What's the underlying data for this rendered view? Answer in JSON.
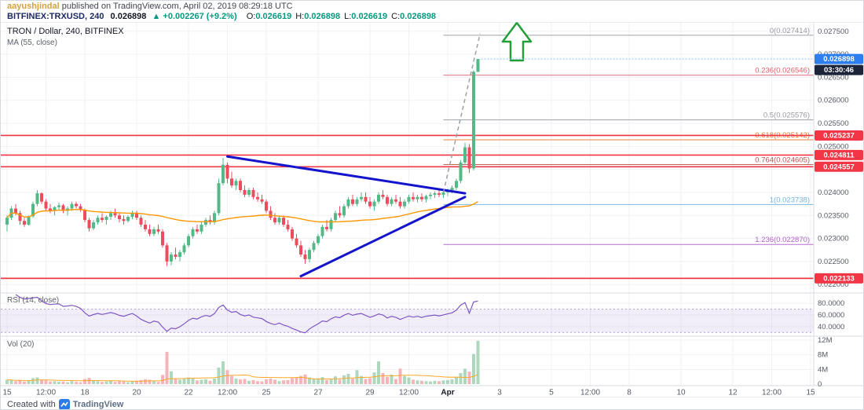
{
  "header": {
    "author": "aayushjindal",
    "published_text": "published on TradingView.com, April 02, 2019 08:29:18 UTC",
    "symbol": "BITFINEX:TRXUSD, 240",
    "last_price": "0.026898",
    "change_text": "▲ +0.002267 (+9.2%)",
    "ohlc": [
      {
        "label": "O:",
        "value": "0.026619"
      },
      {
        "label": "H:",
        "value": "0.026898"
      },
      {
        "label": "L:",
        "value": "0.026619"
      },
      {
        "label": "C:",
        "value": "0.026898"
      }
    ]
  },
  "legend": {
    "title": "TRON / Dollar, 240, BITFINEX",
    "ma": "MA (55, close)",
    "rsi": "RSI (14, close)",
    "vol": "Vol (20)"
  },
  "footer": {
    "created_with": "Created with",
    "brand": "TradingView"
  },
  "chart_data": {
    "type": "candlestick",
    "title": "TRON / Dollar, 240, BITFINEX",
    "symbol": "BITFINEX:TRXUSD",
    "interval": "240",
    "price_range": [
      0.02185,
      0.02765
    ],
    "rsi_range": [
      25,
      95
    ],
    "rsi_band": [
      30,
      70
    ],
    "vol_max": 12,
    "fib_start_i": 101,
    "indicators": {
      "ma_period": 55,
      "rsi_period": 14,
      "vol_ma_period": 20
    },
    "colors": {
      "up": "#53b987",
      "down": "#eb4d5c",
      "vol_up": "#aed8bd",
      "vol_down": "#f5b3ba",
      "ma": "#ff9800",
      "vol_ma": "#ffa726",
      "rsi": "#7e57c2",
      "rsi_band_edge": "#b39ddb",
      "triangle": "#1414cc",
      "dashed": "#9aa0a8",
      "arrow": "#22a038",
      "red_line": "#f23645",
      "tag_blue": "#2d7ff0",
      "tag_dark": "#1b2439"
    },
    "y_ticks": [
      "0.027500",
      "0.027000",
      "0.026500",
      "0.026000",
      "0.025500",
      "0.025000",
      "0.024500",
      "0.024000",
      "0.023500",
      "0.023000",
      "0.022500",
      "0.022000"
    ],
    "x_ticks": [
      {
        "label": "15",
        "i": 0
      },
      {
        "label": "12:00",
        "i": 9
      },
      {
        "label": "18",
        "i": 18
      },
      {
        "label": "20",
        "i": 30
      },
      {
        "label": "22",
        "i": 42
      },
      {
        "label": "12:00",
        "i": 51
      },
      {
        "label": "25",
        "i": 60
      },
      {
        "label": "27",
        "i": 72
      },
      {
        "label": "29",
        "i": 84
      },
      {
        "label": "12:00",
        "i": 93
      },
      {
        "label": "Apr",
        "i": 102,
        "bold": true
      },
      {
        "label": "3",
        "i": 114
      },
      {
        "label": "5",
        "i": 126
      },
      {
        "label": "12:00",
        "i": 135
      },
      {
        "label": "8",
        "i": 144
      },
      {
        "label": "10",
        "i": 156
      },
      {
        "label": "12",
        "i": 168
      },
      {
        "label": "12:00",
        "i": 177
      },
      {
        "label": "15",
        "i": 186
      }
    ],
    "rsi_ticks": [
      {
        "label": "80.0000",
        "v": 80
      },
      {
        "label": "60.0000",
        "v": 60
      },
      {
        "label": "40.0000",
        "v": 40
      }
    ],
    "vol_ticks": [
      {
        "label": "12M",
        "v": 12
      },
      {
        "label": "8M",
        "v": 8
      },
      {
        "label": "4M",
        "v": 4
      },
      {
        "label": "0",
        "v": 0
      }
    ],
    "fib_levels": [
      {
        "label": "0(0.027414)",
        "price": 0.027414,
        "color": "#9598a1"
      },
      {
        "label": "0.236(0.026546)",
        "price": 0.026546,
        "color": "#e05c6a"
      },
      {
        "label": "0.5(0.025576)",
        "price": 0.025576,
        "color": "#9598a1"
      },
      {
        "label": "0.618(0.025142)",
        "price": 0.025142,
        "color": "#e8742c"
      },
      {
        "label": "0.764(0.024605)",
        "price": 0.024605,
        "color": "#c05050"
      },
      {
        "label": "1(0.023738)",
        "price": 0.023738,
        "color": "#6fb3e0"
      },
      {
        "label": "1.236(0.022870)",
        "price": 0.02287,
        "color": "#b05ecb"
      }
    ],
    "red_lines": [
      {
        "price": 0.025237,
        "tag": "0.025237"
      },
      {
        "price": 0.024811,
        "tag": "0.024811"
      },
      {
        "price": 0.024557,
        "tag": "0.024557"
      },
      {
        "price": 0.022133,
        "tag": "0.022133"
      }
    ],
    "current_price": {
      "value": "0.026898",
      "price": 0.026898,
      "countdown": "03:30:46"
    },
    "triangle": {
      "lines": [
        {
          "i1": 51,
          "p1": 0.02478,
          "i2": 106,
          "p2": 0.02398
        },
        {
          "i1": 68,
          "p1": 0.02218,
          "i2": 106,
          "p2": 0.0239
        }
      ]
    },
    "projection_line": {
      "points": [
        {
          "i": 101,
          "p": 0.024
        },
        {
          "i": 109.5,
          "p": 0.02745
        }
      ]
    },
    "arrow": {
      "cx": 657,
      "top": 28,
      "head_y": 52,
      "bottom": 76,
      "half_head": 18,
      "half_shaft": 8
    },
    "candles": [
      [
        23300,
        23500,
        23150,
        23450,
        1.2
      ],
      [
        23450,
        23700,
        23400,
        23650,
        1.0
      ],
      [
        23650,
        23750,
        23500,
        23550,
        0.8
      ],
      [
        23550,
        23600,
        23300,
        23380,
        1.1
      ],
      [
        23380,
        23450,
        23250,
        23300,
        0.7
      ],
      [
        23300,
        23500,
        23280,
        23480,
        0.9
      ],
      [
        23480,
        23800,
        23450,
        23750,
        1.6
      ],
      [
        23750,
        24050,
        23700,
        23980,
        1.8
      ],
      [
        23980,
        24000,
        23750,
        23800,
        1.2
      ],
      [
        23800,
        23850,
        23600,
        23650,
        1.0
      ],
      [
        23650,
        23750,
        23550,
        23600,
        0.7
      ],
      [
        23600,
        23700,
        23500,
        23680,
        0.8
      ],
      [
        23680,
        23780,
        23600,
        23720,
        0.6
      ],
      [
        23720,
        23750,
        23550,
        23600,
        0.7
      ],
      [
        23600,
        23700,
        23500,
        23650,
        0.5
      ],
      [
        23650,
        23800,
        23600,
        23750,
        0.8
      ],
      [
        23750,
        23800,
        23650,
        23700,
        0.6
      ],
      [
        23700,
        23750,
        23580,
        23620,
        0.5
      ],
      [
        23620,
        23650,
        23350,
        23400,
        1.4
      ],
      [
        23400,
        23450,
        23150,
        23220,
        1.7
      ],
      [
        23220,
        23400,
        23180,
        23350,
        1.0
      ],
      [
        23350,
        23500,
        23300,
        23450,
        0.8
      ],
      [
        23450,
        23550,
        23350,
        23400,
        0.6
      ],
      [
        23400,
        23500,
        23300,
        23470,
        0.7
      ],
      [
        23470,
        23600,
        23400,
        23550,
        0.9
      ],
      [
        23550,
        23650,
        23450,
        23500,
        0.6
      ],
      [
        23500,
        23550,
        23350,
        23420,
        0.8
      ],
      [
        23420,
        23500,
        23300,
        23380,
        0.7
      ],
      [
        23380,
        23500,
        23350,
        23470,
        0.5
      ],
      [
        23470,
        23600,
        23420,
        23560,
        0.8
      ],
      [
        23560,
        23600,
        23400,
        23450,
        0.9
      ],
      [
        23450,
        23500,
        23250,
        23300,
        1.1
      ],
      [
        23300,
        23400,
        23150,
        23200,
        1.3
      ],
      [
        23200,
        23300,
        23050,
        23100,
        1.2
      ],
      [
        23100,
        23250,
        23050,
        23200,
        0.8
      ],
      [
        23200,
        23300,
        23100,
        23150,
        0.6
      ],
      [
        23150,
        23200,
        22800,
        22850,
        2.5
      ],
      [
        22850,
        22900,
        22400,
        22500,
        8.8
      ],
      [
        22500,
        22700,
        22420,
        22650,
        3.5
      ],
      [
        22650,
        22800,
        22550,
        22600,
        1.5
      ],
      [
        22600,
        22750,
        22500,
        22700,
        1.2
      ],
      [
        22700,
        22900,
        22650,
        22850,
        1.4
      ],
      [
        22850,
        23100,
        22800,
        23050,
        1.8
      ],
      [
        23050,
        23250,
        23000,
        23200,
        1.6
      ],
      [
        23200,
        23300,
        23100,
        23150,
        1.0
      ],
      [
        23150,
        23350,
        23100,
        23300,
        1.2
      ],
      [
        23300,
        23450,
        23250,
        23400,
        1.3
      ],
      [
        23400,
        23500,
        23300,
        23350,
        0.9
      ],
      [
        23350,
        23600,
        23300,
        23550,
        1.5
      ],
      [
        23550,
        24300,
        23500,
        24200,
        4.5
      ],
      [
        24200,
        24750,
        24150,
        24600,
        6.2
      ],
      [
        24600,
        24650,
        24200,
        24300,
        3.8
      ],
      [
        24300,
        24450,
        24100,
        24150,
        2.2
      ],
      [
        24150,
        24300,
        24050,
        24250,
        1.5
      ],
      [
        24250,
        24300,
        24000,
        24050,
        1.3
      ],
      [
        24050,
        24150,
        23900,
        23950,
        1.4
      ],
      [
        23950,
        24100,
        23900,
        24050,
        0.9
      ],
      [
        24050,
        24100,
        23850,
        23900,
        1.1
      ],
      [
        23900,
        24000,
        23800,
        23850,
        0.8
      ],
      [
        23850,
        23950,
        23750,
        23800,
        0.7
      ],
      [
        23800,
        23850,
        23550,
        23600,
        1.3
      ],
      [
        23600,
        23700,
        23400,
        23450,
        1.5
      ],
      [
        23450,
        23550,
        23300,
        23350,
        1.2
      ],
      [
        23350,
        23500,
        23300,
        23450,
        0.8
      ],
      [
        23450,
        23500,
        23250,
        23300,
        1.0
      ],
      [
        23300,
        23400,
        23150,
        23200,
        1.1
      ],
      [
        23200,
        23250,
        22950,
        23000,
        1.6
      ],
      [
        23000,
        23100,
        22800,
        22850,
        1.8
      ],
      [
        22850,
        22950,
        22600,
        22650,
        2.2
      ],
      [
        22650,
        22750,
        22450,
        22550,
        2.6
      ],
      [
        22550,
        22800,
        22480,
        22750,
        1.8
      ],
      [
        22750,
        22950,
        22700,
        22900,
        1.4
      ],
      [
        22900,
        23100,
        22850,
        23050,
        1.6
      ],
      [
        23050,
        23300,
        23000,
        23250,
        1.9
      ],
      [
        23250,
        23400,
        23150,
        23200,
        1.1
      ],
      [
        23200,
        23450,
        23150,
        23400,
        1.5
      ],
      [
        23400,
        23600,
        23350,
        23550,
        2.1
      ],
      [
        23550,
        23700,
        23450,
        23500,
        1.2
      ],
      [
        23500,
        23750,
        23450,
        23700,
        2.4
      ],
      [
        23700,
        23900,
        23650,
        23850,
        2.8
      ],
      [
        23850,
        23950,
        23700,
        23750,
        1.5
      ],
      [
        23750,
        23900,
        23700,
        23850,
        3.8
      ],
      [
        23850,
        24000,
        23800,
        23900,
        2.2
      ],
      [
        23900,
        24000,
        23750,
        23800,
        1.4
      ],
      [
        23800,
        23900,
        23650,
        23700,
        1.6
      ],
      [
        23700,
        23850,
        23600,
        23800,
        3.2
      ],
      [
        23800,
        24000,
        23750,
        23950,
        6.2
      ],
      [
        23950,
        24050,
        23850,
        23900,
        3.0
      ],
      [
        23900,
        23950,
        23700,
        23750,
        2.0
      ],
      [
        23750,
        23900,
        23700,
        23850,
        2.6
      ],
      [
        23850,
        23950,
        23750,
        23800,
        1.4
      ],
      [
        23800,
        23900,
        23650,
        23700,
        4.2
      ],
      [
        23700,
        23850,
        23650,
        23800,
        2.2
      ],
      [
        23800,
        23950,
        23750,
        23900,
        1.8
      ],
      [
        23900,
        24000,
        23800,
        23850,
        1.2
      ],
      [
        23850,
        23950,
        23780,
        23900,
        1.0
      ],
      [
        23900,
        23980,
        23800,
        23850,
        0.9
      ],
      [
        23850,
        23950,
        23780,
        23920,
        0.8
      ],
      [
        23920,
        24000,
        23850,
        23950,
        0.7
      ],
      [
        23950,
        24020,
        23880,
        23980,
        0.9
      ],
      [
        23980,
        24050,
        23900,
        23950,
        0.8
      ],
      [
        23950,
        24030,
        23880,
        24000,
        1.0
      ],
      [
        24000,
        24080,
        23920,
        24050,
        1.1
      ],
      [
        24050,
        24150,
        23980,
        24100,
        1.3
      ],
      [
        24100,
        24300,
        24050,
        24250,
        1.8
      ],
      [
        24250,
        24700,
        24200,
        24650,
        3.0
      ],
      [
        24650,
        25080,
        24600,
        24980,
        4.2
      ],
      [
        24980,
        25050,
        24420,
        24520,
        3.4
      ],
      [
        24520,
        26650,
        24480,
        26619,
        8.2
      ],
      [
        26619,
        26898,
        26619,
        26898,
        11.8
      ]
    ]
  }
}
